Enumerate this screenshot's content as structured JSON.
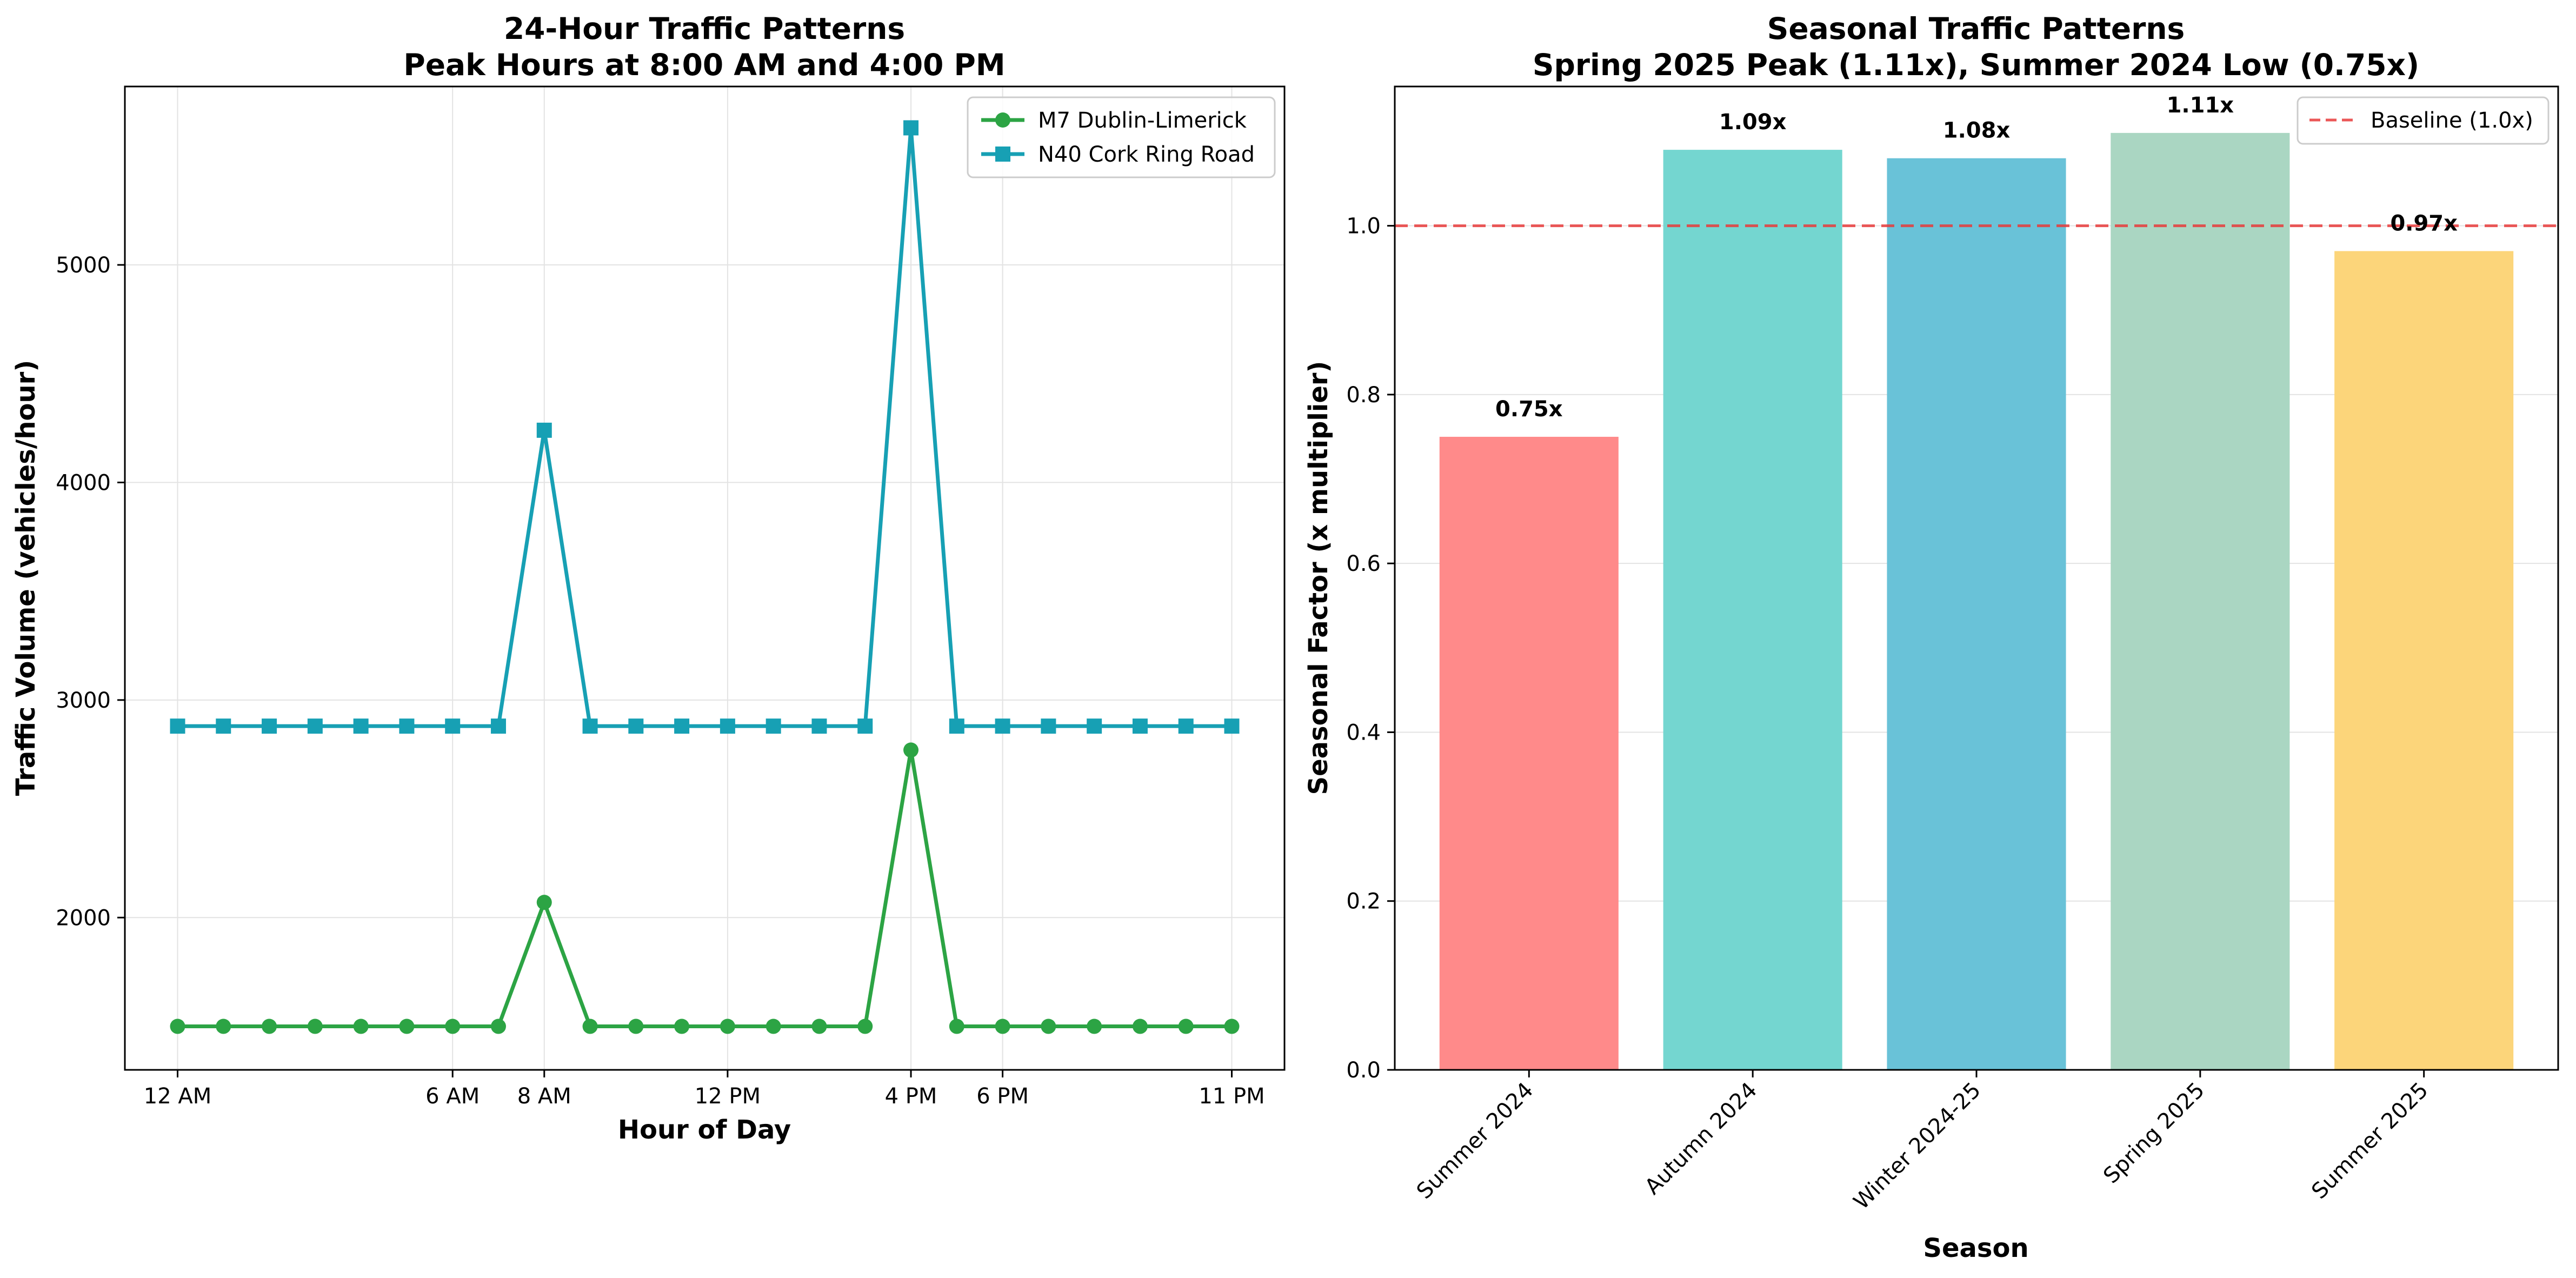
{
  "chart_data": [
    {
      "type": "line",
      "title": "24-Hour Traffic Patterns",
      "subtitle": "Peak Hours at 8:00 AM and 4:00 PM",
      "xlabel": "Hour of Day",
      "ylabel": "Traffic Volume (vehicles/hour)",
      "x": [
        0,
        1,
        2,
        3,
        4,
        5,
        6,
        7,
        8,
        9,
        10,
        11,
        12,
        13,
        14,
        15,
        16,
        17,
        18,
        19,
        20,
        21,
        22,
        23
      ],
      "xlim": [
        -1.15,
        24.15
      ],
      "ylim": [
        1300,
        5820
      ],
      "xticks": [
        {
          "value": 0,
          "label": "12 AM"
        },
        {
          "value": 6,
          "label": "6 AM"
        },
        {
          "value": 8,
          "label": "8 AM"
        },
        {
          "value": 12,
          "label": "12 PM"
        },
        {
          "value": 16,
          "label": "4 PM"
        },
        {
          "value": 18,
          "label": "6 PM"
        },
        {
          "value": 23,
          "label": "11 PM"
        }
      ],
      "yticks": [
        {
          "value": 2000,
          "label": "2000"
        },
        {
          "value": 3000,
          "label": "3000"
        },
        {
          "value": 4000,
          "label": "4000"
        },
        {
          "value": 5000,
          "label": "5000"
        }
      ],
      "grid": true,
      "legend_position": "top-right",
      "series": [
        {
          "name": "M7 Dublin-Limerick",
          "color": "#2ca444",
          "marker": "circle",
          "values": [
            1500,
            1500,
            1500,
            1500,
            1500,
            1500,
            1500,
            1500,
            2070,
            1500,
            1500,
            1500,
            1500,
            1500,
            1500,
            1500,
            2770,
            1500,
            1500,
            1500,
            1500,
            1500,
            1500,
            1500
          ]
        },
        {
          "name": "N40 Cork Ring Road",
          "color": "#17a0b4",
          "marker": "square",
          "values": [
            2880,
            2880,
            2880,
            2880,
            2880,
            2880,
            2880,
            2880,
            4240,
            2880,
            2880,
            2880,
            2880,
            2880,
            2880,
            2880,
            5630,
            2880,
            2880,
            2880,
            2880,
            2880,
            2880,
            2880
          ]
        }
      ]
    },
    {
      "type": "bar",
      "title": "Seasonal Traffic Patterns",
      "subtitle": "Spring 2025 Peak (1.11x), Summer 2024 Low (0.75x)",
      "xlabel": "Season",
      "ylabel": "Seasonal Factor (x multiplier)",
      "categories": [
        "Summer 2024",
        "Autumn 2024",
        "Winter 2024-25",
        "Spring 2025",
        "Summer 2025"
      ],
      "values": [
        0.75,
        1.09,
        1.08,
        1.11,
        0.97
      ],
      "value_labels": [
        "0.75x",
        "1.09x",
        "1.08x",
        "1.11x",
        "0.97x"
      ],
      "colors": [
        "#ff8a8a",
        "#74d6d0",
        "#69c2d8",
        "#aad6c2",
        "#fcd57a"
      ],
      "ylim": [
        0,
        1.165
      ],
      "yticks": [
        {
          "value": 0.0,
          "label": "0.0"
        },
        {
          "value": 0.2,
          "label": "0.2"
        },
        {
          "value": 0.4,
          "label": "0.4"
        },
        {
          "value": 0.6,
          "label": "0.6"
        },
        {
          "value": 0.8,
          "label": "0.8"
        },
        {
          "value": 1.0,
          "label": "1.0"
        }
      ],
      "baseline": {
        "value": 1.0,
        "label": "Baseline (1.0x)",
        "color": "#e83a3a"
      },
      "grid": true,
      "legend_position": "top-right"
    }
  ]
}
